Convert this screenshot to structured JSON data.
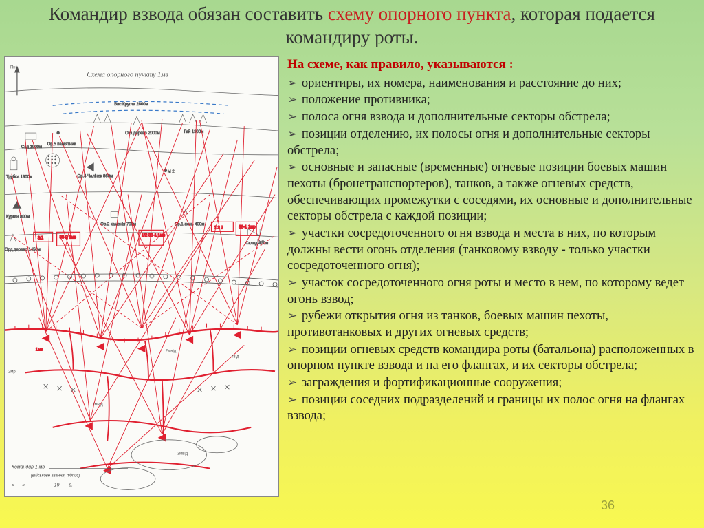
{
  "title": {
    "pre": "Командир взвода обязан составить ",
    "hl": "схему опорного пункта",
    "post": ", которая подается командиру роты."
  },
  "subhead": "На схеме, как правило, указываются :",
  "items": [
    "ориентиры, их номера, наименования и расстояние до них;",
    "положение противника;",
    "полоса огня взвода и дополнительные секторы обстрела;",
    "позиции отделению, их полосы огня и дополнительные секторы обстрела;",
    "основные и запасные (временные) огневые позиции боевых машин пехоты (бронетранспортеров), танков, а также огневых средств, обеспечивающих промежутки с соседями, их основные и дополнительные секторы обстрела с каждой позиции;",
    "участки сосредоточенного огня взвода и места в них, по которым должны вести огонь отделения (танковому взводу - только участки сосредоточенного огня);",
    "участок сосредоточенного огня роты и место в нем, по которому ведет огонь взвод;",
    "рубежи открытия огня из танков, боевых машин пехоты, противотанковых и других огневых средств;",
    "позиции огневых средств командира роты (батальона) расположенных в опорном пункте взвода и на его флангах, и их секторы обстрела;",
    "заграждения и фортификационные сооружения;",
    "позиции соседних подразделений и границы их полос огня на флангах взвода;"
  ],
  "page_number": "36",
  "map": {
    "title": "Схема опорного пункту  1мв",
    "signature_line1": "Командир 1 мв",
    "signature_line2": "(військове звання, підпис)",
    "date_template": "«___» __________ 19___ р.",
    "labels": {
      "pn": "Пн",
      "sad": "Сад\n1900м",
      "trubka": "Трубка\n1900м",
      "kurgan": "Курган\n800м",
      "derevo3": "Орд.дерево\n1450м",
      "pamyatnik": "Ор.5 пам'ятник",
      "chahlinok": "Ор.4 Чалінок\n860м",
      "kameniya": "Ор.2 каменія\n700м",
      "pen": "Ор.1-пень\n400м",
      "viskrugla": "Вис.Кругла\n2800м",
      "okderevo": "Окз.дерево\n2000м",
      "gai": "Гай\n1900м",
      "sklad": "Склад\n400м",
      "m2": "М 2",
      "unit_3_1": "3/1",
      "unit_38_2": "38-2\n1мв",
      "unit_1_2": "1/2\n38-1\n1мв",
      "unit_132": "1 3 2",
      "unit_38_1": "38-1\n1мр",
      "1mvid": "1мвід",
      "2mvid": "2мвід",
      "3mvid": "3мвід",
      "gvid": "гвід",
      "1mr": "1мр",
      "2mr": "2мр",
      "1mb": "1мв"
    },
    "colors": {
      "red": "#e02030",
      "dark": "#4a4a4a",
      "blue": "#3878c8",
      "paper": "#fbfbf8"
    }
  }
}
